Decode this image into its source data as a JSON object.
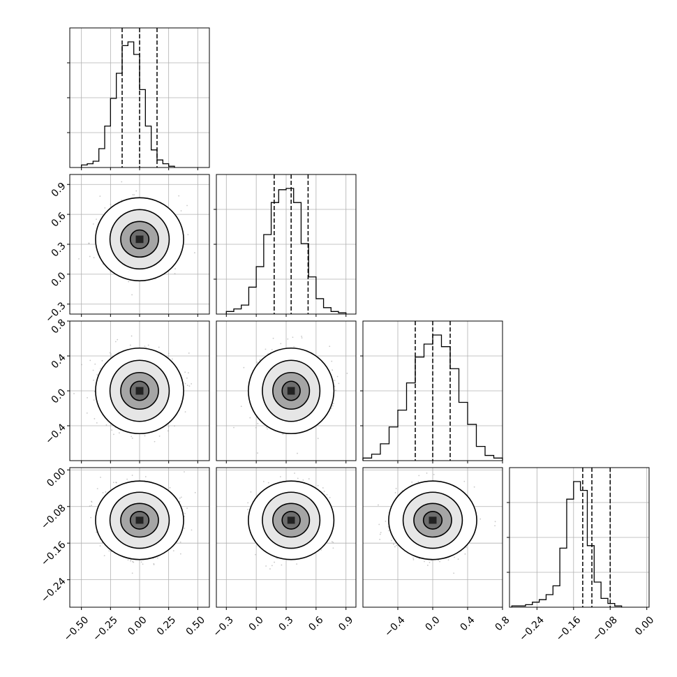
{
  "chart_data": {
    "type": "corner",
    "parameters": 4,
    "axis_ranges": [
      [
        -0.6,
        0.6
      ],
      [
        -0.4,
        1.0
      ],
      [
        -0.8,
        0.8
      ],
      [
        -0.3,
        0.005
      ]
    ],
    "ticks": [
      [
        "−0.50",
        "−0.25",
        "0.00",
        "0.25",
        "0.50"
      ],
      [
        "−0.3",
        "0.0",
        "0.3",
        "0.6",
        "0.9"
      ],
      [
        "−0.4",
        "0.0",
        "0.4",
        "0.8"
      ],
      [
        "−0.24",
        "−0.16",
        "−0.08",
        "0.00"
      ]
    ],
    "tick_values": [
      [
        -0.5,
        -0.25,
        0.0,
        0.25,
        0.5
      ],
      [
        -0.3,
        0.0,
        0.3,
        0.6,
        0.9
      ],
      [
        -0.4,
        0.0,
        0.4,
        0.8
      ],
      [
        -0.24,
        -0.16,
        -0.08,
        0.0
      ]
    ],
    "histograms": [
      {
        "edges_start": -0.5,
        "bin_width": 0.05,
        "counts": [
          0.02,
          0.03,
          0.05,
          0.15,
          0.33,
          0.55,
          0.75,
          0.97,
          1.0,
          0.9,
          0.62,
          0.33,
          0.14,
          0.06,
          0.03,
          0.01
        ],
        "quantiles": [
          -0.15,
          0.0,
          0.15
        ]
      },
      {
        "edges_start": -0.3,
        "bin_width": 0.075,
        "counts": [
          0.02,
          0.04,
          0.07,
          0.21,
          0.37,
          0.62,
          0.87,
          0.97,
          0.98,
          0.87,
          0.55,
          0.29,
          0.12,
          0.05,
          0.02,
          0.01
        ],
        "quantiles": [
          0.18,
          0.35,
          0.52
        ]
      },
      {
        "edges_start": -0.8,
        "bin_width": 0.1,
        "counts": [
          0.02,
          0.05,
          0.13,
          0.26,
          0.39,
          0.6,
          0.8,
          0.9,
          0.97,
          0.88,
          0.71,
          0.45,
          0.28,
          0.11,
          0.04,
          0.02
        ],
        "quantiles": [
          -0.2,
          0.0,
          0.2
        ]
      },
      {
        "edges_start": -0.295,
        "bin_width": 0.015,
        "counts": [
          0.01,
          0.01,
          0.02,
          0.04,
          0.06,
          0.1,
          0.17,
          0.47,
          0.86,
          1.0,
          0.93,
          0.49,
          0.2,
          0.07,
          0.03,
          0.01
        ],
        "quantiles": [
          -0.14,
          -0.12,
          -0.08
        ]
      }
    ],
    "joint": [
      {
        "row": 1,
        "col": 0,
        "center": [
          0.0,
          0.35
        ],
        "sd": [
          0.15,
          0.17
        ]
      },
      {
        "row": 2,
        "col": 0,
        "center": [
          0.0,
          0.0
        ],
        "sd": [
          0.15,
          0.2
        ]
      },
      {
        "row": 2,
        "col": 1,
        "center": [
          0.35,
          0.0
        ],
        "sd": [
          0.17,
          0.2
        ]
      },
      {
        "row": 3,
        "col": 0,
        "center": [
          0.0,
          -0.11
        ],
        "sd": [
          0.15,
          0.035
        ]
      },
      {
        "row": 3,
        "col": 1,
        "center": [
          0.35,
          -0.11
        ],
        "sd": [
          0.17,
          0.035
        ]
      },
      {
        "row": 3,
        "col": 2,
        "center": [
          0.0,
          -0.11
        ],
        "sd": [
          0.2,
          0.035
        ]
      }
    ],
    "grid": true,
    "legend": "none",
    "colors": {
      "data": "#000000",
      "scatter": "#9a9a9a",
      "grid": "#b0b0b0"
    }
  }
}
